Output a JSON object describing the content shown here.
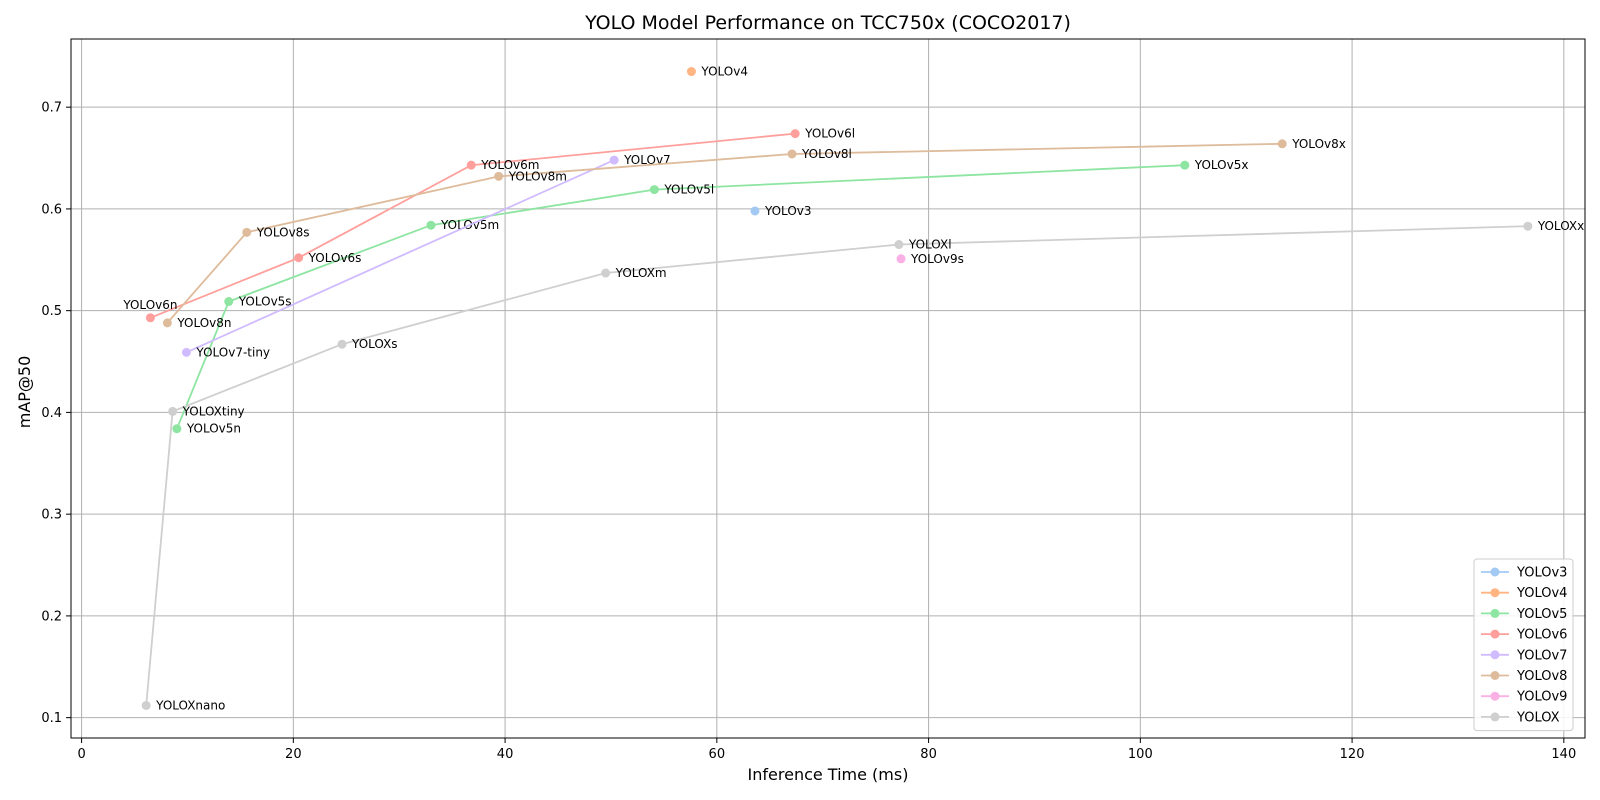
{
  "chart_data": {
    "type": "line",
    "title": "YOLO Model Performance on TCC750x (COCO2017)",
    "xlabel": "Inference Time (ms)",
    "ylabel": "mAP@50",
    "xlim": [
      -1,
      142
    ],
    "ylim": [
      0.08,
      0.767
    ],
    "xticks": [
      0,
      20,
      40,
      60,
      80,
      100,
      120,
      140
    ],
    "yticks": [
      0.1,
      0.2,
      0.3,
      0.4,
      0.5,
      0.6,
      0.7
    ],
    "xtick_labels": [
      "0",
      "20",
      "40",
      "60",
      "80",
      "100",
      "120",
      "140"
    ],
    "ytick_labels": [
      "0.1",
      "0.2",
      "0.3",
      "0.4",
      "0.5",
      "0.6",
      "0.7"
    ],
    "grid": true,
    "legend_position": "lower-right",
    "series": [
      {
        "name": "YOLOv3",
        "color": "#a1c9f4",
        "points": [
          {
            "label": "YOLOv3",
            "x": 63.6,
            "y": 0.598
          }
        ]
      },
      {
        "name": "YOLOv4",
        "color": "#ffb482",
        "points": [
          {
            "label": "YOLOv4",
            "x": 57.6,
            "y": 0.735
          }
        ]
      },
      {
        "name": "YOLOv5",
        "color": "#8de5a1",
        "points": [
          {
            "label": "YOLOv5n",
            "x": 9.0,
            "y": 0.384
          },
          {
            "label": "YOLOv5s",
            "x": 13.9,
            "y": 0.509
          },
          {
            "label": "YOLOv5m",
            "x": 33.0,
            "y": 0.584
          },
          {
            "label": "YOLOv5l",
            "x": 54.1,
            "y": 0.619
          },
          {
            "label": "YOLOv5x",
            "x": 104.2,
            "y": 0.643
          }
        ]
      },
      {
        "name": "YOLOv6",
        "color": "#ff9f9b",
        "points": [
          {
            "label": "YOLOv6n",
            "x": 6.5,
            "y": 0.493
          },
          {
            "label": "YOLOv6s",
            "x": 20.5,
            "y": 0.552
          },
          {
            "label": "YOLOv6m",
            "x": 36.8,
            "y": 0.643
          },
          {
            "label": "YOLOv6l",
            "x": 67.4,
            "y": 0.674
          }
        ]
      },
      {
        "name": "YOLOv7",
        "color": "#d0bbff",
        "points": [
          {
            "label": "YOLOv7-tiny",
            "x": 9.9,
            "y": 0.459
          },
          {
            "label": "YOLOv7",
            "x": 50.3,
            "y": 0.648
          }
        ]
      },
      {
        "name": "YOLOv8",
        "color": "#debb9b",
        "points": [
          {
            "label": "YOLOv8n",
            "x": 8.1,
            "y": 0.488
          },
          {
            "label": "YOLOv8s",
            "x": 15.6,
            "y": 0.577
          },
          {
            "label": "YOLOv8m",
            "x": 39.4,
            "y": 0.632
          },
          {
            "label": "YOLOv8l",
            "x": 67.1,
            "y": 0.654
          },
          {
            "label": "YOLOv8x",
            "x": 113.4,
            "y": 0.664
          }
        ]
      },
      {
        "name": "YOLOv9",
        "color": "#fab0e4",
        "points": [
          {
            "label": "YOLOv9s",
            "x": 77.4,
            "y": 0.551
          }
        ]
      },
      {
        "name": "YOLOX",
        "color": "#cfcfcf",
        "points": [
          {
            "label": "YOLOXnano",
            "x": 6.1,
            "y": 0.112
          },
          {
            "label": "YOLOXtiny",
            "x": 8.6,
            "y": 0.401
          },
          {
            "label": "YOLOXs",
            "x": 24.6,
            "y": 0.467
          },
          {
            "label": "YOLOXm",
            "x": 49.5,
            "y": 0.537
          },
          {
            "label": "YOLOXl",
            "x": 77.2,
            "y": 0.565
          },
          {
            "label": "YOLOXx",
            "x": 136.6,
            "y": 0.583
          }
        ]
      }
    ]
  }
}
